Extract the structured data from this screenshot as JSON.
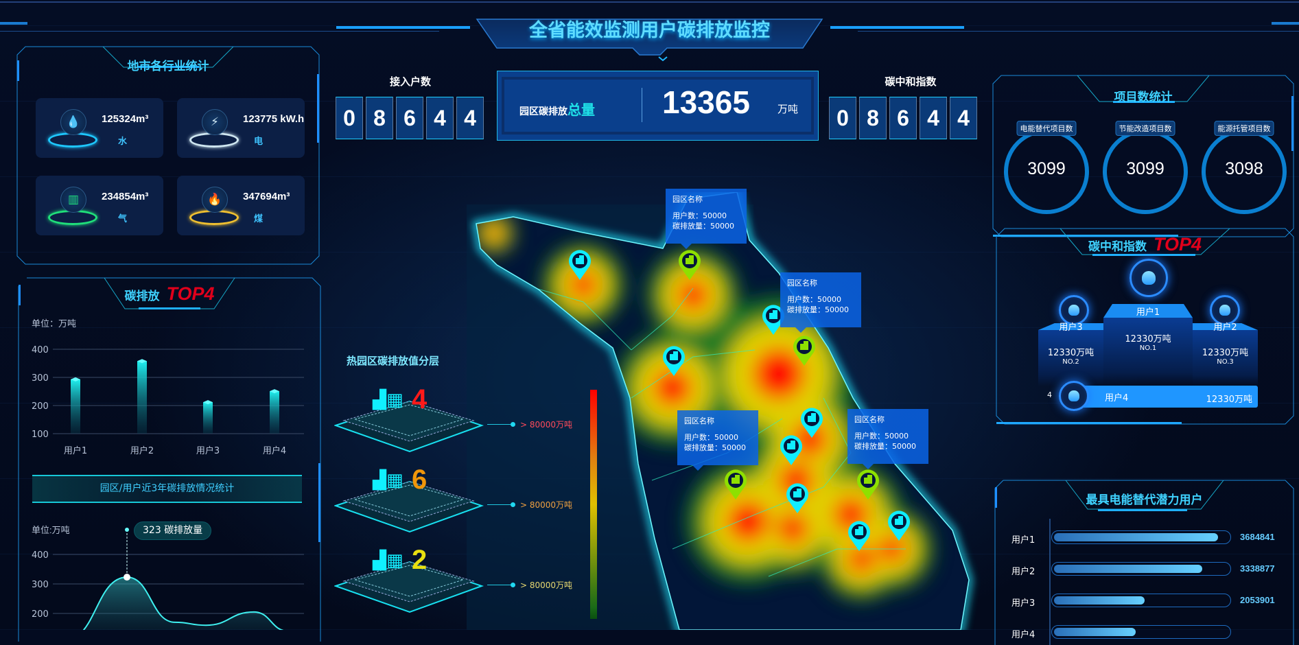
{
  "header": {
    "title": "全省能效监测用户碳排放监控"
  },
  "industry": {
    "title": "地市各行业统计",
    "items": [
      {
        "value": "125324m³",
        "label": "水",
        "icon": "water-drop-icon",
        "color": "#1ec8ff"
      },
      {
        "value": "123775 kW.h",
        "label": "电",
        "icon": "lightning-icon",
        "color": "#cfe6f0"
      },
      {
        "value": "234854m³",
        "label": "气",
        "icon": "gas-icon",
        "color": "#20e07a"
      },
      {
        "value": "347694m³",
        "label": "煤",
        "icon": "flame-icon",
        "color": "#f0c030"
      }
    ]
  },
  "top4": {
    "title": "碳排放",
    "badge": "TOP4"
  },
  "chart_data": [
    {
      "type": "bar",
      "unit": "单位：万吨",
      "categories": [
        "用户1",
        "用户2",
        "用户3",
        "用户4"
      ],
      "values": [
        293,
        358,
        212,
        251
      ],
      "ylim": [
        100,
        400
      ],
      "yticks": [
        400,
        300,
        200,
        100
      ],
      "grid": true
    },
    {
      "type": "area",
      "unit": "单位:万吨",
      "values": [
        110,
        323,
        170,
        160,
        205,
        140
      ],
      "ylim": [
        100,
        400
      ],
      "yticks": [
        400,
        300,
        200
      ],
      "tooltip": {
        "value": "323",
        "label": "碳排放量"
      },
      "grid": true
    }
  ],
  "trend": {
    "title": "园区/用户近3年碳排放情况统计"
  },
  "users": {
    "label": "接入户数",
    "digits": [
      "0",
      "8",
      "6",
      "4",
      "4"
    ]
  },
  "total": {
    "label": "园区碳排放",
    "label_em": "总量",
    "value": "13365",
    "unit": "万吨"
  },
  "neutral": {
    "label": "碳中和指数",
    "digits": [
      "0",
      "8",
      "6",
      "4",
      "4"
    ]
  },
  "layers": {
    "title": "热园区碳排放值分层",
    "items": [
      {
        "count": "4",
        "text": "> 80000万吨",
        "color": "#ff1a1a",
        "text_color": "#ff4a5a"
      },
      {
        "count": "6",
        "text": "> 80000万吨",
        "color": "#f0960a",
        "text_color": "#f0a040"
      },
      {
        "count": "2",
        "text": "> 80000万吨",
        "color": "#e8e010",
        "text_color": "#e8d870"
      }
    ]
  },
  "map": {
    "tooltips": [
      {
        "name": "园区名称",
        "users": "用户数：50000",
        "emission": "碳排放量：50000"
      },
      {
        "name": "园区名称",
        "users": "用户数：50000",
        "emission": "碳排放量：50000"
      },
      {
        "name": "园区名称",
        "users": "用户数：50000",
        "emission": "碳排放量：50000"
      },
      {
        "name": "园区名称",
        "users": "用户数：50000",
        "emission": "碳排放量：50000"
      }
    ]
  },
  "projects": {
    "title": "项目数统计",
    "items": [
      {
        "label": "电能替代项目数",
        "value": "3099"
      },
      {
        "label": "节能改造项目数",
        "value": "3099"
      },
      {
        "label": "能源托管项目数",
        "value": "3098"
      }
    ]
  },
  "neutral_top4": {
    "title": "碳中和指数",
    "badge": "TOP4",
    "first": {
      "name": "用户1",
      "value": "12330万吨",
      "rank": "NO.1"
    },
    "second": {
      "name": "用户3",
      "value": "12330万吨",
      "rank": "NO.2"
    },
    "third": {
      "name": "用户2",
      "value": "12330万吨",
      "rank": "NO.3"
    },
    "fourth": {
      "rank": "4",
      "name": "用户4",
      "value": "12330万吨"
    }
  },
  "potential": {
    "title": "最具电能替代潜力用户",
    "rows": [
      {
        "label": "用户1",
        "value": "3684841",
        "fill": 0.94
      },
      {
        "label": "用户2",
        "value": "3338877",
        "fill": 0.85
      },
      {
        "label": "用户3",
        "value": "2053901",
        "fill": 0.52
      },
      {
        "label": "用户4",
        "value": null,
        "fill": 0.47
      }
    ]
  }
}
